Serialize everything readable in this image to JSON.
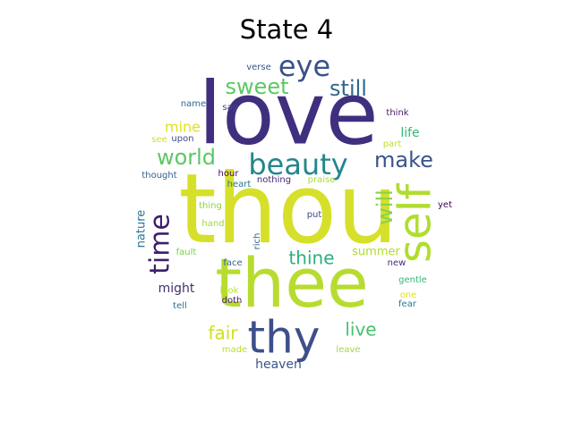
{
  "title": "State 4",
  "words": [
    {
      "text": "love",
      "color": "#3f2f7e"
    },
    {
      "text": "thou",
      "color": "#d6e02a"
    },
    {
      "text": "thee",
      "color": "#b7dc2f"
    },
    {
      "text": "thy",
      "color": "#3d4f8a"
    },
    {
      "text": "eye",
      "color": "#3b5289"
    },
    {
      "text": "beauty",
      "color": "#23858c"
    },
    {
      "text": "self",
      "color": "#b0dd2f"
    },
    {
      "text": "sweet",
      "color": "#5cc863"
    },
    {
      "text": "still",
      "color": "#32678d"
    },
    {
      "text": "world",
      "color": "#5ac864"
    },
    {
      "text": "make",
      "color": "#3b5489"
    },
    {
      "text": "time",
      "color": "#3d1e6a"
    },
    {
      "text": "will",
      "color": "#84d44b"
    },
    {
      "text": "thine",
      "color": "#2aaf7f"
    },
    {
      "text": "fair",
      "color": "#cfe11c"
    },
    {
      "text": "live",
      "color": "#49bf6f"
    },
    {
      "text": "mine",
      "color": "#e0e319"
    },
    {
      "text": "life",
      "color": "#35b779"
    },
    {
      "text": "might",
      "color": "#46306e"
    },
    {
      "text": "heaven",
      "color": "#3a548c"
    },
    {
      "text": "nature",
      "color": "#2c728e"
    },
    {
      "text": "summer",
      "color": "#b2dc2d"
    },
    {
      "text": "verse",
      "color": "#3b5288"
    },
    {
      "text": "say",
      "color": "#3e4989"
    },
    {
      "text": "name",
      "color": "#2f6c8e"
    },
    {
      "text": "think",
      "color": "#481a6c"
    },
    {
      "text": "upon",
      "color": "#3e4a89"
    },
    {
      "text": "see",
      "color": "#d0e11c"
    },
    {
      "text": "part",
      "color": "#c2df23"
    },
    {
      "text": "hour",
      "color": "#46085c"
    },
    {
      "text": "heart",
      "color": "#2a788e"
    },
    {
      "text": "thought",
      "color": "#34618d"
    },
    {
      "text": "nothing",
      "color": "#482576"
    },
    {
      "text": "praise",
      "color": "#a8db34"
    },
    {
      "text": "thing",
      "color": "#8ed645"
    },
    {
      "text": "hand",
      "color": "#9dd93b"
    },
    {
      "text": "put",
      "color": "#3e4989"
    },
    {
      "text": "yet",
      "color": "#3e0751"
    },
    {
      "text": "rich",
      "color": "#31668e"
    },
    {
      "text": "new",
      "color": "#472a7a"
    },
    {
      "text": "fault",
      "color": "#7ad151"
    },
    {
      "text": "face",
      "color": "#33628d"
    },
    {
      "text": "gentle",
      "color": "#35b779"
    },
    {
      "text": "look",
      "color": "#b5de2b"
    },
    {
      "text": "one",
      "color": "#e2e418"
    },
    {
      "text": "doth",
      "color": "#482173"
    },
    {
      "text": "tell",
      "color": "#2c728e"
    },
    {
      "text": "fear",
      "color": "#2a788e"
    },
    {
      "text": "made",
      "color": "#bddf26"
    },
    {
      "text": "leave",
      "color": "#a2da37"
    }
  ]
}
